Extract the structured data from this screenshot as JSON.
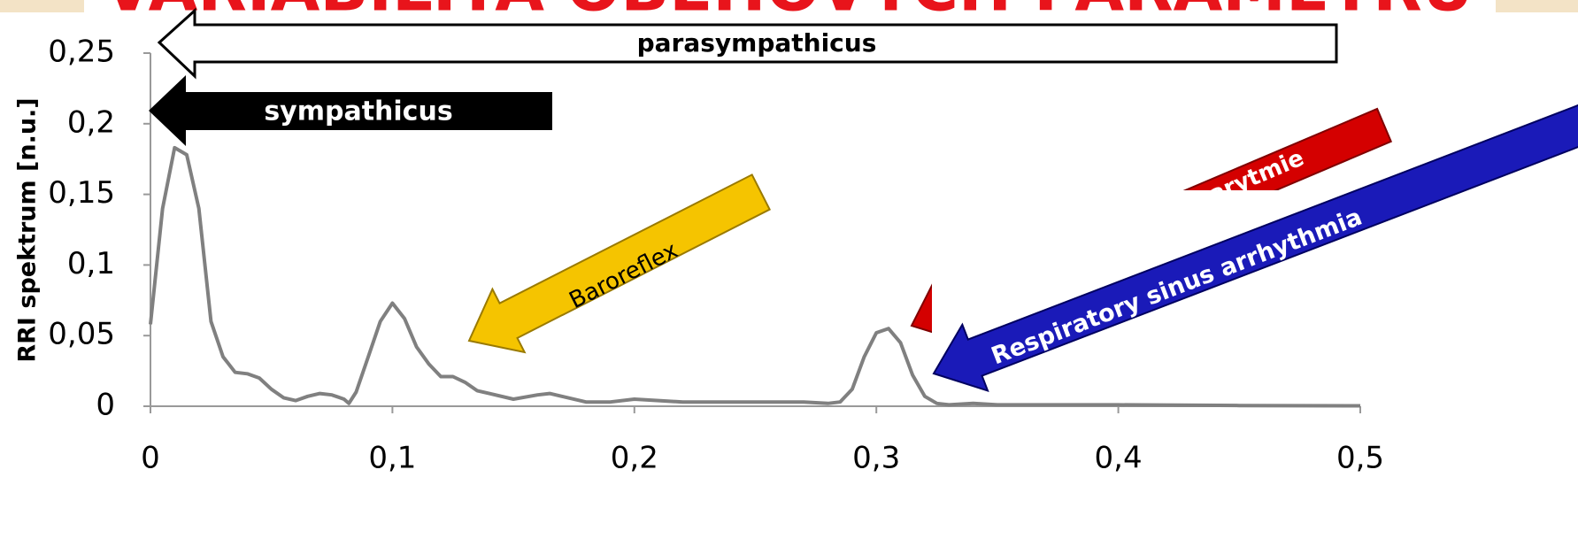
{
  "chart_data": {
    "type": "line",
    "title": "VARIABILITA OBĚHOVÝCH PARAMETRŮ",
    "ylabel": "RRI spektrum [n.u.]",
    "x": [
      0,
      0.005,
      0.01,
      0.015,
      0.02,
      0.025,
      0.03,
      0.035,
      0.04,
      0.045,
      0.05,
      0.055,
      0.06,
      0.065,
      0.07,
      0.075,
      0.08,
      0.082,
      0.085,
      0.09,
      0.095,
      0.1,
      0.105,
      0.11,
      0.115,
      0.12,
      0.125,
      0.13,
      0.135,
      0.14,
      0.15,
      0.16,
      0.165,
      0.17,
      0.18,
      0.19,
      0.2,
      0.21,
      0.22,
      0.25,
      0.27,
      0.28,
      0.285,
      0.29,
      0.295,
      0.3,
      0.305,
      0.31,
      0.315,
      0.32,
      0.325,
      0.33,
      0.34,
      0.35,
      0.4,
      0.45,
      0.5
    ],
    "values": [
      0.058,
      0.14,
      0.183,
      0.178,
      0.14,
      0.06,
      0.035,
      0.024,
      0.023,
      0.02,
      0.012,
      0.006,
      0.004,
      0.007,
      0.009,
      0.008,
      0.005,
      0.002,
      0.01,
      0.035,
      0.06,
      0.073,
      0.062,
      0.042,
      0.03,
      0.021,
      0.021,
      0.017,
      0.011,
      0.009,
      0.005,
      0.008,
      0.009,
      0.007,
      0.003,
      0.003,
      0.005,
      0.004,
      0.003,
      0.003,
      0.003,
      0.002,
      0.003,
      0.012,
      0.035,
      0.052,
      0.055,
      0.045,
      0.022,
      0.007,
      0.002,
      0.001,
      0.002,
      0.001,
      0.001,
      0.0005,
      0.0003
    ],
    "color": "#808080",
    "xlim": [
      0,
      0.5
    ],
    "ylim": [
      0,
      0.25
    ],
    "xticks": [
      0,
      {
        "value": 0.1,
        "label": "0,1"
      },
      {
        "value": 0.2,
        "label": "0,2"
      },
      {
        "value": 0.3,
        "label": "0,3"
      },
      {
        "value": 0.4,
        "label": "0,4"
      },
      {
        "value": 0.5,
        "label": "0,5"
      }
    ],
    "yticks": [
      0,
      {
        "value": 0.05,
        "label": "0,05"
      },
      {
        "value": 0.1,
        "label": "0,1"
      },
      {
        "value": 0.15,
        "label": "0,15"
      },
      {
        "value": 0.2,
        "label": "0,2"
      },
      {
        "value": 0.25,
        "label": "0,25"
      }
    ],
    "annotations": [
      "parasympathicus",
      "sympathicus",
      "Baroreflex",
      "arytmie",
      "Respiratory sinus arrhythmia"
    ]
  }
}
